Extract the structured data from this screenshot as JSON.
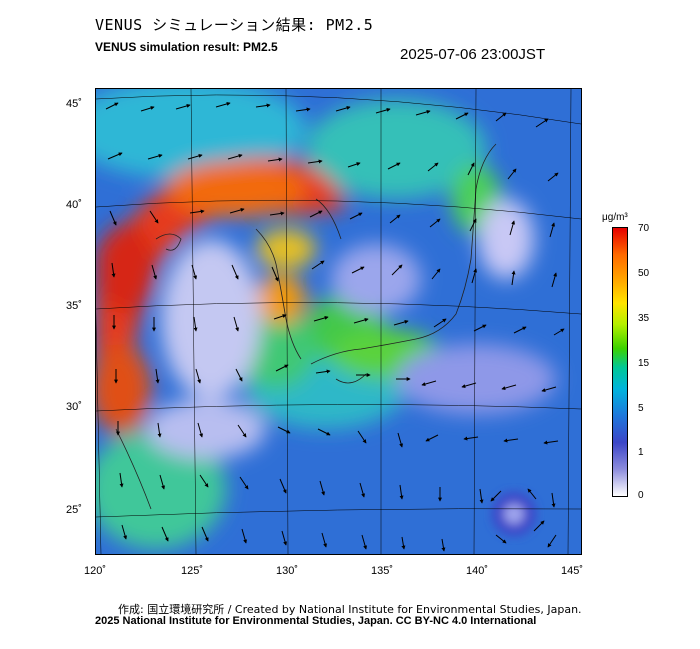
{
  "title_jp": "VENUS シミュレーション結果: PM2.5",
  "title_en": "VENUS simulation result: PM2.5",
  "timestamp": "2025-07-06 23:00JST",
  "map": {
    "lon_labels": [
      "120˚",
      "125˚",
      "130˚",
      "135˚",
      "140˚",
      "145˚"
    ],
    "lat_labels": [
      "45˚",
      "40˚",
      "35˚",
      "30˚",
      "25˚"
    ]
  },
  "colorbar": {
    "unit": "μg/m³",
    "labels": [
      "70",
      "50",
      "35",
      "15",
      "5",
      "1",
      "0"
    ]
  },
  "credits": {
    "line1": "作成: 国立環境研究所 / Created by National Institute for Environmental Studies, Japan.",
    "line2": "2025 National Institute for Environmental Studies, Japan. CC BY-NC 4.0 International"
  }
}
